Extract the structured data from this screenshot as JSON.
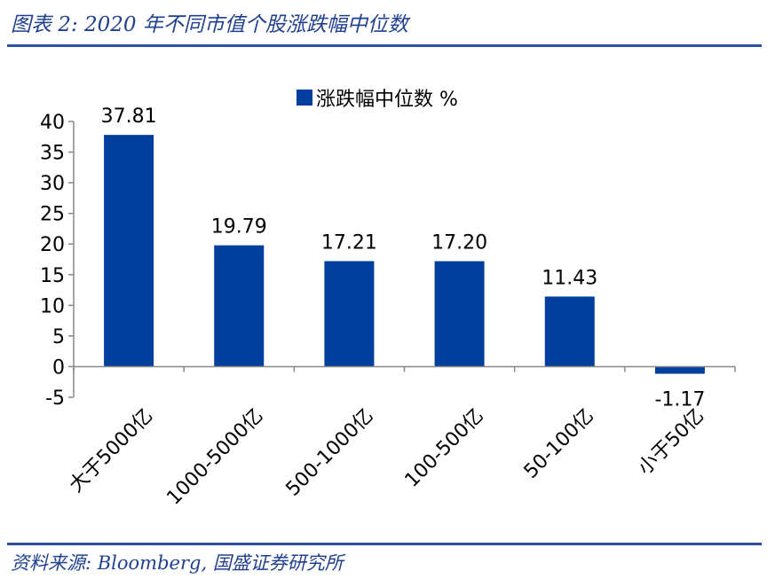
{
  "figure": {
    "title": "图表 2:  2020 年不同市值个股涨跌幅中位数",
    "source": "资料来源:  Bloomberg,  国盛证券研究所"
  },
  "colors": {
    "bar": "#003f9e",
    "title": "#1f3f8f",
    "rule": "#2d4fa1",
    "axis": "#888888"
  },
  "chart_data": {
    "type": "bar",
    "categories": [
      "大于5000亿",
      "1000-5000亿",
      "500-1000亿",
      "100-500亿",
      "50-100亿",
      "小于50亿"
    ],
    "series": [
      {
        "name": "涨跌幅中位数 %",
        "values": [
          37.81,
          19.79,
          17.21,
          17.2,
          11.43,
          -1.17
        ],
        "labels": [
          "37.81",
          "19.79",
          "17.21",
          "17.20",
          "11.43",
          "-1.17"
        ]
      }
    ],
    "y_ticks": [
      "40",
      "35",
      "30",
      "25",
      "20",
      "15",
      "10",
      "5",
      "0",
      "-5"
    ],
    "ylim": [
      -5,
      40
    ],
    "legend_position": "top-center",
    "grid": false
  }
}
